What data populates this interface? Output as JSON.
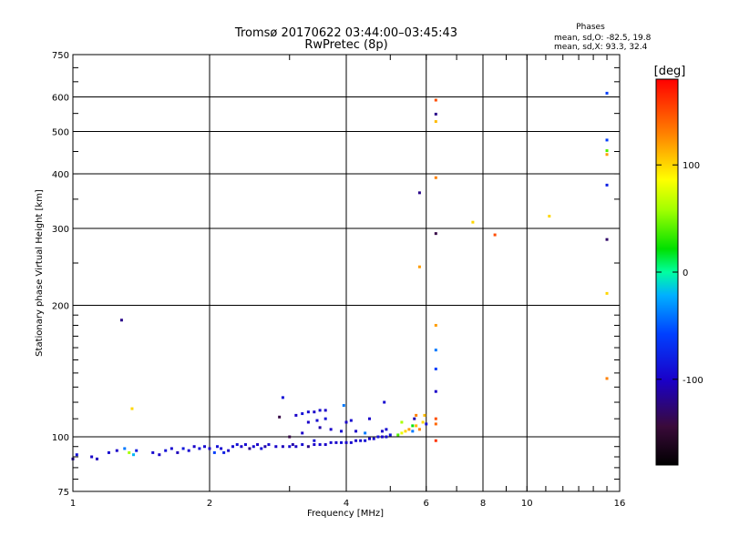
{
  "chart_data": {
    "type": "scatter",
    "title": "Tromsø 20170622 03:44:00–03:45:43",
    "subtitle": "RwPretec (8p)",
    "xlabel": "Frequency [MHz]",
    "ylabel": "Stationary phase Virtual Height [km]",
    "x_scale": "log",
    "y_scale": "log",
    "xlim": [
      1,
      16
    ],
    "ylim": [
      75,
      750
    ],
    "x_ticks": [
      1,
      2,
      4,
      6,
      8,
      10,
      16
    ],
    "y_ticks": [
      75,
      100,
      200,
      300,
      400,
      500,
      600,
      750
    ],
    "grid": true,
    "stats": {
      "heading": "Phases",
      "line_o": "mean, sd,O: -82.5, 19.8",
      "line_x": "mean, sd,X:  93.3, 32.4"
    },
    "colorbar": {
      "label": "[deg]",
      "range": [
        -180,
        180
      ],
      "ticks": [
        100,
        0,
        -100
      ],
      "tick_labels": [
        "100",
        "0",
        "-100"
      ]
    },
    "points": [
      {
        "x": 1.0,
        "y": 89,
        "phase": -110
      },
      {
        "x": 1.02,
        "y": 91,
        "phase": -90
      },
      {
        "x": 1.1,
        "y": 90,
        "phase": -100
      },
      {
        "x": 1.13,
        "y": 89,
        "phase": -105
      },
      {
        "x": 1.2,
        "y": 92,
        "phase": -95
      },
      {
        "x": 1.25,
        "y": 93,
        "phase": -100
      },
      {
        "x": 1.3,
        "y": 94,
        "phase": -40
      },
      {
        "x": 1.33,
        "y": 92,
        "phase": 60
      },
      {
        "x": 1.36,
        "y": 91,
        "phase": -20
      },
      {
        "x": 1.38,
        "y": 93,
        "phase": -85
      },
      {
        "x": 1.5,
        "y": 92,
        "phase": -95
      },
      {
        "x": 1.55,
        "y": 91,
        "phase": -100
      },
      {
        "x": 1.6,
        "y": 93,
        "phase": -90
      },
      {
        "x": 1.65,
        "y": 94,
        "phase": -95
      },
      {
        "x": 1.7,
        "y": 92,
        "phase": -105
      },
      {
        "x": 1.75,
        "y": 94,
        "phase": -85
      },
      {
        "x": 1.8,
        "y": 93,
        "phase": -95
      },
      {
        "x": 1.85,
        "y": 95,
        "phase": -100
      },
      {
        "x": 1.9,
        "y": 94,
        "phase": -90
      },
      {
        "x": 1.95,
        "y": 95,
        "phase": -95
      },
      {
        "x": 2.0,
        "y": 94,
        "phase": -100
      },
      {
        "x": 2.05,
        "y": 92,
        "phase": -60
      },
      {
        "x": 2.08,
        "y": 95,
        "phase": -90
      },
      {
        "x": 2.12,
        "y": 94,
        "phase": -95
      },
      {
        "x": 2.15,
        "y": 92,
        "phase": -80
      },
      {
        "x": 2.2,
        "y": 93,
        "phase": -100
      },
      {
        "x": 2.25,
        "y": 95,
        "phase": -95
      },
      {
        "x": 2.3,
        "y": 96,
        "phase": -90
      },
      {
        "x": 2.35,
        "y": 95,
        "phase": -100
      },
      {
        "x": 2.4,
        "y": 96,
        "phase": -95
      },
      {
        "x": 2.45,
        "y": 94,
        "phase": -120
      },
      {
        "x": 2.5,
        "y": 95,
        "phase": -95
      },
      {
        "x": 2.55,
        "y": 96,
        "phase": -100
      },
      {
        "x": 2.6,
        "y": 94,
        "phase": -90
      },
      {
        "x": 2.65,
        "y": 95,
        "phase": -110
      },
      {
        "x": 2.7,
        "y": 96,
        "phase": -95
      },
      {
        "x": 2.8,
        "y": 95,
        "phase": -100
      },
      {
        "x": 2.9,
        "y": 95,
        "phase": -105
      },
      {
        "x": 3.0,
        "y": 95,
        "phase": -95
      },
      {
        "x": 3.05,
        "y": 96,
        "phase": -110
      },
      {
        "x": 3.1,
        "y": 95,
        "phase": -100
      },
      {
        "x": 3.2,
        "y": 96,
        "phase": -95
      },
      {
        "x": 3.3,
        "y": 95,
        "phase": -120
      },
      {
        "x": 3.4,
        "y": 96,
        "phase": -100
      },
      {
        "x": 3.5,
        "y": 96,
        "phase": -95
      },
      {
        "x": 3.6,
        "y": 96,
        "phase": -100
      },
      {
        "x": 3.7,
        "y": 97,
        "phase": -95
      },
      {
        "x": 3.8,
        "y": 97,
        "phase": -100
      },
      {
        "x": 3.9,
        "y": 97,
        "phase": -90
      },
      {
        "x": 4.0,
        "y": 97,
        "phase": -100
      },
      {
        "x": 4.1,
        "y": 97,
        "phase": -95
      },
      {
        "x": 4.2,
        "y": 98,
        "phase": -100
      },
      {
        "x": 4.3,
        "y": 98,
        "phase": -95
      },
      {
        "x": 4.4,
        "y": 98,
        "phase": -90
      },
      {
        "x": 4.5,
        "y": 99,
        "phase": -100
      },
      {
        "x": 4.6,
        "y": 99,
        "phase": -95
      },
      {
        "x": 4.7,
        "y": 100,
        "phase": -90
      },
      {
        "x": 4.8,
        "y": 100,
        "phase": -100
      },
      {
        "x": 4.9,
        "y": 100,
        "phase": -95
      },
      {
        "x": 5.0,
        "y": 101,
        "phase": -90
      },
      {
        "x": 5.2,
        "y": 101,
        "phase": 40
      },
      {
        "x": 5.3,
        "y": 102,
        "phase": 80
      },
      {
        "x": 5.4,
        "y": 103,
        "phase": 100
      },
      {
        "x": 5.5,
        "y": 104,
        "phase": 120
      },
      {
        "x": 5.6,
        "y": 103,
        "phase": -40
      },
      {
        "x": 5.7,
        "y": 106,
        "phase": 110
      },
      {
        "x": 5.8,
        "y": 104,
        "phase": 130
      },
      {
        "x": 5.9,
        "y": 108,
        "phase": 100
      },
      {
        "x": 6.0,
        "y": 107,
        "phase": -90
      },
      {
        "x": 3.0,
        "y": 100,
        "phase": -140
      },
      {
        "x": 3.2,
        "y": 102,
        "phase": -100
      },
      {
        "x": 3.4,
        "y": 98,
        "phase": -90
      },
      {
        "x": 3.5,
        "y": 105,
        "phase": -110
      },
      {
        "x": 3.7,
        "y": 104,
        "phase": -100
      },
      {
        "x": 3.9,
        "y": 103,
        "phase": -95
      },
      {
        "x": 4.2,
        "y": 103,
        "phase": -100
      },
      {
        "x": 4.4,
        "y": 102,
        "phase": -40
      },
      {
        "x": 4.8,
        "y": 103,
        "phase": -100
      },
      {
        "x": 4.9,
        "y": 104,
        "phase": -95
      },
      {
        "x": 3.1,
        "y": 112,
        "phase": -100
      },
      {
        "x": 3.2,
        "y": 113,
        "phase": -90
      },
      {
        "x": 3.3,
        "y": 114,
        "phase": -95
      },
      {
        "x": 3.4,
        "y": 114,
        "phase": -100
      },
      {
        "x": 3.5,
        "y": 115,
        "phase": -95
      },
      {
        "x": 3.6,
        "y": 115,
        "phase": -100
      },
      {
        "x": 3.3,
        "y": 108,
        "phase": -100
      },
      {
        "x": 3.45,
        "y": 109,
        "phase": -95
      },
      {
        "x": 3.6,
        "y": 110,
        "phase": -90
      },
      {
        "x": 4.0,
        "y": 108,
        "phase": -100
      },
      {
        "x": 4.1,
        "y": 109,
        "phase": -95
      },
      {
        "x": 3.95,
        "y": 118,
        "phase": -40
      },
      {
        "x": 2.85,
        "y": 111,
        "phase": -140
      },
      {
        "x": 2.9,
        "y": 123,
        "phase": -90
      },
      {
        "x": 4.5,
        "y": 110,
        "phase": -100
      },
      {
        "x": 4.85,
        "y": 120,
        "phase": -95
      },
      {
        "x": 5.3,
        "y": 108,
        "phase": 60
      },
      {
        "x": 5.6,
        "y": 106,
        "phase": 20
      },
      {
        "x": 5.65,
        "y": 110,
        "phase": -110
      },
      {
        "x": 5.7,
        "y": 112,
        "phase": 130
      },
      {
        "x": 5.95,
        "y": 112,
        "phase": 110
      },
      {
        "x": 1.28,
        "y": 185,
        "phase": -120
      },
      {
        "x": 1.35,
        "y": 116,
        "phase": 100
      },
      {
        "x": 5.8,
        "y": 362,
        "phase": -120
      },
      {
        "x": 5.8,
        "y": 245,
        "phase": 120
      },
      {
        "x": 6.3,
        "y": 590,
        "phase": 150
      },
      {
        "x": 6.3,
        "y": 548,
        "phase": -120
      },
      {
        "x": 6.3,
        "y": 527,
        "phase": 110
      },
      {
        "x": 6.3,
        "y": 392,
        "phase": 130
      },
      {
        "x": 6.3,
        "y": 292,
        "phase": -140
      },
      {
        "x": 6.3,
        "y": 180,
        "phase": 120
      },
      {
        "x": 6.3,
        "y": 158,
        "phase": -40
      },
      {
        "x": 6.3,
        "y": 143,
        "phase": -60
      },
      {
        "x": 6.3,
        "y": 127,
        "phase": -100
      },
      {
        "x": 6.3,
        "y": 110,
        "phase": 150
      },
      {
        "x": 6.3,
        "y": 107,
        "phase": 140
      },
      {
        "x": 6.3,
        "y": 98,
        "phase": 160
      },
      {
        "x": 7.6,
        "y": 310,
        "phase": 100
      },
      {
        "x": 8.5,
        "y": 290,
        "phase": 150
      },
      {
        "x": 11.2,
        "y": 320,
        "phase": 100
      },
      {
        "x": 15.0,
        "y": 612,
        "phase": -60
      },
      {
        "x": 15.0,
        "y": 478,
        "phase": -60
      },
      {
        "x": 15.0,
        "y": 452,
        "phase": 40
      },
      {
        "x": 15.0,
        "y": 443,
        "phase": 120
      },
      {
        "x": 15.0,
        "y": 377,
        "phase": -80
      },
      {
        "x": 15.0,
        "y": 283,
        "phase": -130
      },
      {
        "x": 15.0,
        "y": 213,
        "phase": 100
      },
      {
        "x": 15.0,
        "y": 136,
        "phase": 130
      }
    ]
  }
}
